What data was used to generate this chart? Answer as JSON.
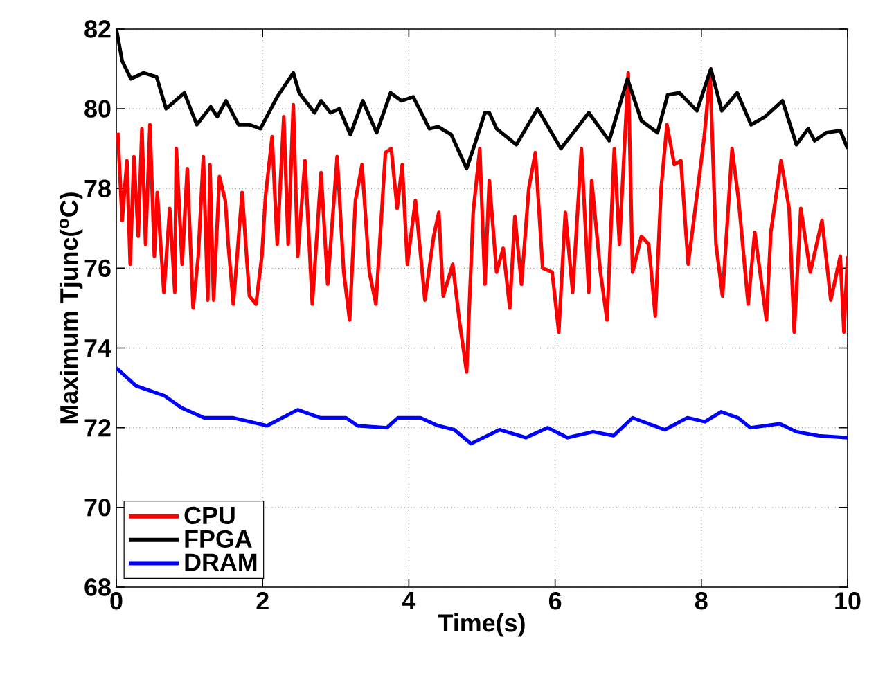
{
  "chart_data": {
    "type": "line",
    "xlabel": "Time(s)",
    "ylabel": "Maximum Tjunc($^{o}$C)",
    "xlim": [
      0,
      10
    ],
    "ylim": [
      68,
      82
    ],
    "xticks": [
      0,
      2,
      4,
      6,
      8,
      10
    ],
    "yticks": [
      68,
      70,
      72,
      74,
      76,
      78,
      80,
      82
    ],
    "grid": true,
    "legend": "bottom left",
    "line_style": "solid",
    "series": [
      {
        "name": "CPU",
        "color": "#ff0000",
        "x": [
          0.02,
          0.08,
          0.145,
          0.19,
          0.24,
          0.3,
          0.35,
          0.4,
          0.46,
          0.52,
          0.56,
          0.65,
          0.73,
          0.8,
          0.82,
          0.9,
          0.97,
          1.05,
          1.12,
          1.19,
          1.25,
          1.28,
          1.33,
          1.41,
          1.49,
          1.53,
          1.6,
          1.72,
          1.82,
          1.91,
          1.99,
          2.04,
          2.13,
          2.2,
          2.29,
          2.35,
          2.42,
          2.48,
          2.58,
          2.68,
          2.8,
          2.89,
          3.02,
          3.11,
          3.19,
          3.27,
          3.36,
          3.46,
          3.55,
          3.68,
          3.76,
          3.84,
          3.91,
          3.98,
          4.09,
          4.22,
          4.34,
          4.41,
          4.47,
          4.6,
          4.69,
          4.79,
          4.88,
          4.97,
          5.04,
          5.1,
          5.2,
          5.29,
          5.38,
          5.45,
          5.54,
          5.64,
          5.73,
          5.83,
          5.96,
          6.05,
          6.14,
          6.24,
          6.36,
          6.46,
          6.5,
          6.62,
          6.71,
          6.81,
          6.88,
          7.0,
          7.06,
          7.18,
          7.28,
          7.37,
          7.45,
          7.53,
          7.63,
          7.72,
          7.82,
          7.91,
          8.04,
          8.12,
          8.2,
          8.29,
          8.42,
          8.51,
          8.64,
          8.73,
          8.89,
          8.95,
          9.09,
          9.2,
          9.27,
          9.36,
          9.49,
          9.65,
          9.77,
          9.9,
          9.95,
          10.0
        ],
        "values": [
          79.4,
          77.2,
          78.7,
          76.1,
          78.8,
          76.8,
          79.5,
          76.6,
          79.6,
          76.3,
          77.9,
          75.4,
          77.5,
          75.4,
          79.0,
          76.1,
          78.5,
          75.0,
          76.3,
          78.8,
          75.2,
          78.6,
          75.2,
          78.3,
          77.7,
          76.6,
          75.1,
          77.9,
          75.3,
          75.1,
          76.3,
          77.8,
          79.3,
          76.6,
          79.8,
          76.6,
          80.1,
          76.3,
          78.7,
          75.1,
          78.4,
          75.6,
          78.8,
          75.9,
          74.7,
          77.7,
          78.6,
          75.9,
          75.1,
          78.9,
          79.0,
          77.5,
          78.6,
          76.1,
          77.7,
          75.2,
          76.8,
          77.4,
          75.3,
          76.1,
          74.7,
          73.4,
          77.4,
          79.0,
          75.6,
          78.2,
          75.9,
          76.5,
          75.0,
          77.3,
          75.6,
          78.0,
          78.9,
          76.0,
          75.9,
          74.4,
          77.4,
          75.4,
          79.0,
          75.4,
          78.2,
          75.9,
          74.7,
          79.0,
          76.6,
          80.9,
          75.9,
          76.8,
          76.6,
          74.8,
          78.0,
          79.6,
          78.6,
          78.7,
          76.1,
          77.4,
          79.3,
          80.9,
          76.6,
          75.3,
          79.0,
          77.7,
          75.1,
          76.9,
          74.7,
          76.9,
          78.7,
          77.5,
          74.4,
          77.5,
          75.9,
          77.2,
          75.2,
          76.3,
          74.4,
          76.3
        ]
      },
      {
        "name": "FPGA",
        "color": "#000000",
        "x": [
          0,
          0.08,
          0.2,
          0.37,
          0.55,
          0.68,
          0.93,
          1.1,
          1.29,
          1.38,
          1.5,
          1.67,
          1.82,
          1.97,
          2.2,
          2.42,
          2.5,
          2.71,
          2.8,
          2.93,
          3.05,
          3.2,
          3.37,
          3.56,
          3.75,
          3.9,
          4.06,
          4.28,
          4.4,
          4.58,
          4.79,
          4.9,
          5.04,
          5.1,
          5.2,
          5.47,
          5.76,
          6.08,
          6.46,
          6.74,
          6.99,
          7.18,
          7.4,
          7.54,
          7.7,
          7.94,
          8.13,
          8.28,
          8.49,
          8.68,
          8.87,
          9.11,
          9.3,
          9.46,
          9.55,
          9.71,
          9.9,
          10
        ],
        "values": [
          82.0,
          81.2,
          80.75,
          80.9,
          80.8,
          80.0,
          80.4,
          79.6,
          80.05,
          79.8,
          80.2,
          79.6,
          79.6,
          79.5,
          80.3,
          80.9,
          80.4,
          79.9,
          80.2,
          79.9,
          80.0,
          79.35,
          80.2,
          79.4,
          80.4,
          80.2,
          80.3,
          79.5,
          79.55,
          79.35,
          78.5,
          79.1,
          79.9,
          79.9,
          79.5,
          79.1,
          80.0,
          79.0,
          79.9,
          79.2,
          80.75,
          79.7,
          79.4,
          80.35,
          80.4,
          79.95,
          81.0,
          79.95,
          80.4,
          79.6,
          79.8,
          80.2,
          79.1,
          79.5,
          79.2,
          79.4,
          79.45,
          79.0
        ]
      },
      {
        "name": "DRAM",
        "color": "#0000ff",
        "x": [
          0,
          0.27,
          0.66,
          0.89,
          1.2,
          1.59,
          2.06,
          2.48,
          2.79,
          3.14,
          3.3,
          3.7,
          3.85,
          4.16,
          4.4,
          4.62,
          4.85,
          5.24,
          5.6,
          5.9,
          6.17,
          6.52,
          6.8,
          7.06,
          7.5,
          7.81,
          8.05,
          8.27,
          8.5,
          8.67,
          9.07,
          9.3,
          9.6,
          10
        ],
        "values": [
          73.5,
          73.05,
          72.8,
          72.5,
          72.25,
          72.25,
          72.05,
          72.45,
          72.25,
          72.25,
          72.05,
          72.0,
          72.25,
          72.25,
          72.05,
          71.95,
          71.6,
          71.95,
          71.75,
          72.0,
          71.75,
          71.9,
          71.8,
          72.25,
          71.95,
          72.25,
          72.15,
          72.4,
          72.25,
          72.0,
          72.1,
          71.9,
          71.8,
          71.75
        ]
      }
    ]
  }
}
